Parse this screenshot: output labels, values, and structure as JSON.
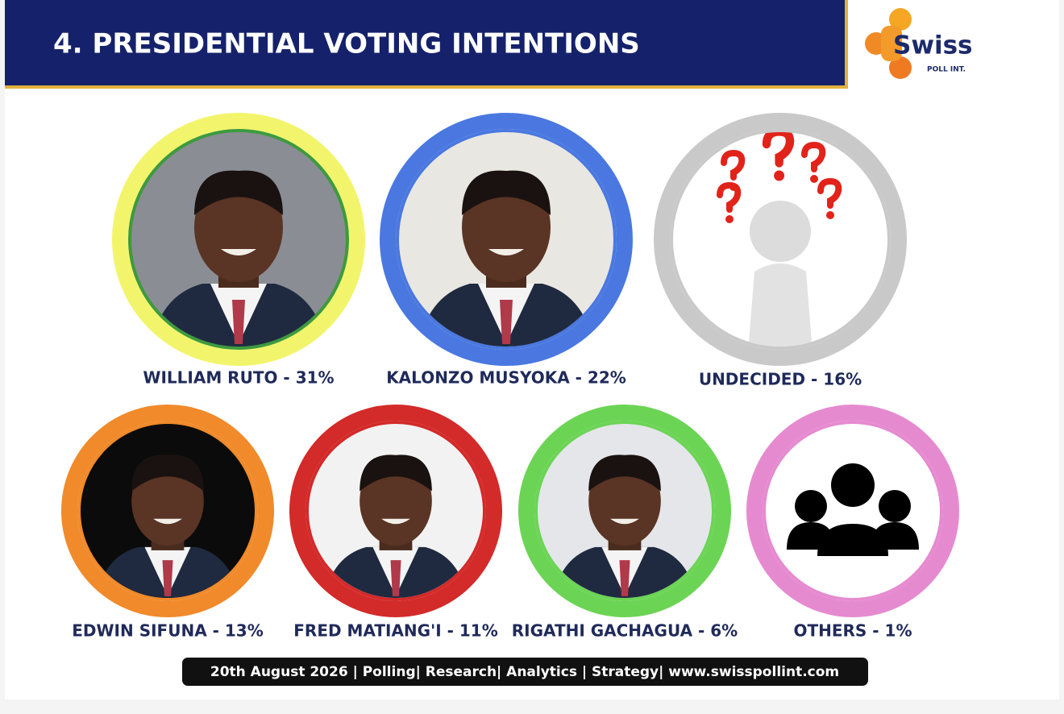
{
  "header": {
    "title": "4. PRESIDENTIAL VOTING INTENTIONS"
  },
  "logo": {
    "name": "Swiss",
    "tagline": "POLL INT."
  },
  "candidates": [
    {
      "label": "WILLIAM RUTO - 31%",
      "ring_color": "#f2f56b",
      "inner_color": "#3d9a3d"
    },
    {
      "label": "KALONZO MUSYOKA - 22%",
      "ring_color": "#4a78e0",
      "inner_color": "#4a78e0"
    },
    {
      "label": "UNDECIDED - 16%",
      "ring_color": "#c9c9c9",
      "inner_color": "#c9c9c9"
    },
    {
      "label": "EDWIN SIFUNA - 13%",
      "ring_color": "#f08a2a",
      "inner_color": "#f08a2a"
    },
    {
      "label": "FRED MATIANG'I - 11%",
      "ring_color": "#d32a2a",
      "inner_color": "#d32a2a"
    },
    {
      "label": "RIGATHI GACHAGUA - 6%",
      "ring_color": "#6cd455",
      "inner_color": "#6cd455"
    },
    {
      "label": "OTHERS - 1%",
      "ring_color": "#e68ad0",
      "inner_color": "#e68ad0"
    }
  ],
  "footer": "20th August 2026 | Polling| Research| Analytics | Strategy| www.swisspollint.com"
}
